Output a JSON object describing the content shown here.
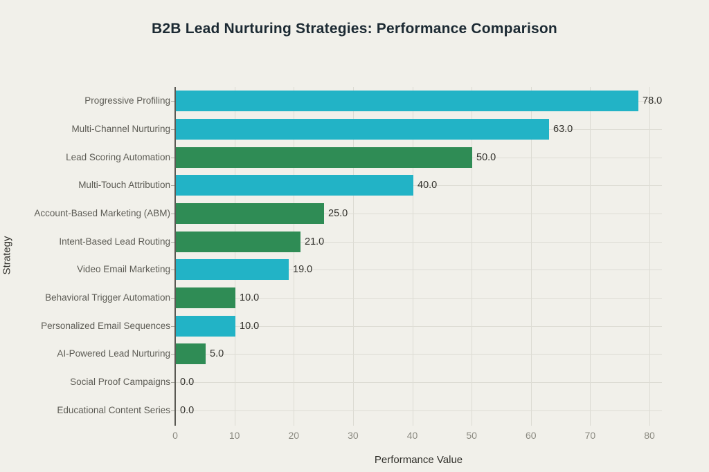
{
  "page": {
    "background_color": "#f1f0ea"
  },
  "chart_data": {
    "type": "bar",
    "orientation": "horizontal",
    "title": "B2B Lead Nurturing Strategies: Performance Comparison",
    "xlabel": "Performance Value",
    "ylabel": "Strategy",
    "xlim": [
      0,
      82
    ],
    "xticks": [
      0,
      10,
      20,
      30,
      40,
      50,
      60,
      70,
      80
    ],
    "grid": true,
    "legend": false,
    "categories": [
      "Progressive Profiling",
      "Multi-Channel Nurturing",
      "Lead Scoring Automation",
      "Multi-Touch Attribution",
      "Account-Based Marketing (ABM)",
      "Intent-Based Lead Routing",
      "Video Email Marketing",
      "Behavioral Trigger Automation",
      "Personalized Email Sequences",
      "AI-Powered Lead Nurturing",
      "Social Proof Campaigns",
      "Educational Content Series"
    ],
    "values": [
      78,
      63,
      50,
      40,
      25,
      21,
      19,
      10,
      10,
      5,
      0,
      0
    ],
    "value_labels": [
      "78.0",
      "63.0",
      "50.0",
      "40.0",
      "25.0",
      "21.0",
      "19.0",
      "10.0",
      "10.0",
      "5.0",
      "0.0",
      "0.0"
    ],
    "bar_colors": [
      "#22b3c6",
      "#22b3c6",
      "#2f8c55",
      "#22b3c6",
      "#2f8c55",
      "#2f8c55",
      "#22b3c6",
      "#2f8c55",
      "#22b3c6",
      "#2f8c55",
      "#2f8c55",
      "#22b3c6"
    ]
  },
  "colors": {
    "teal": "#22b3c6",
    "green": "#2f8c55",
    "background": "#f1f0ea",
    "gridline": "#dcdbd3",
    "zeroline": "#5a5953",
    "title_text": "#1c2a33",
    "category_text": "#5d5c55",
    "value_text": "#32312c",
    "tick_text": "#8b8a81"
  }
}
